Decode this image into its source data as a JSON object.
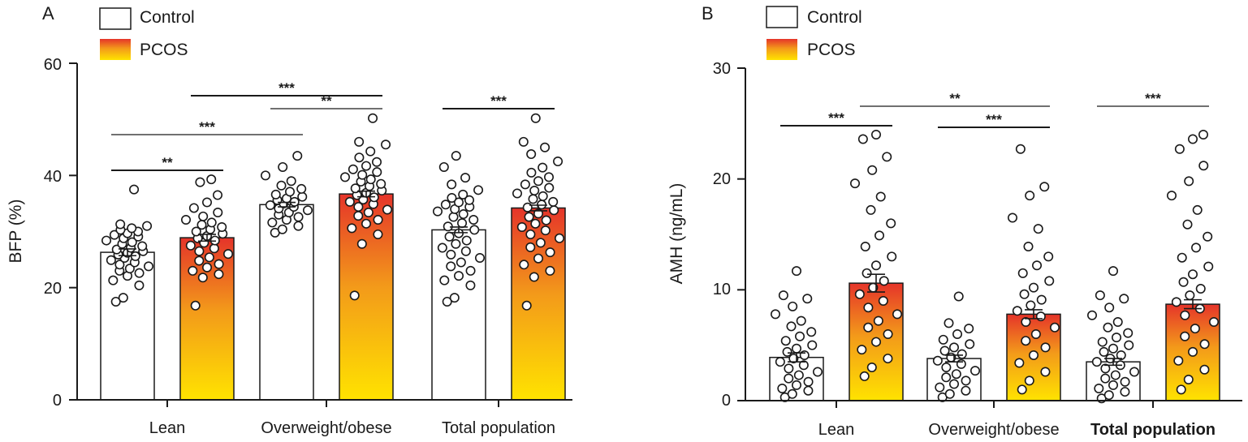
{
  "chart_data": [
    {
      "type": "bar",
      "panel_label": "A",
      "ylabel": "BFP (%)",
      "ylim": [
        0,
        60
      ],
      "yticks": [
        0,
        20,
        40,
        60
      ],
      "categories": [
        "Lean",
        "Overweight/obese",
        "Total population"
      ],
      "series": [
        {
          "name": "Control",
          "style": "white",
          "values": [
            26.3,
            34.8,
            30.3
          ],
          "sem": [
            0.6,
            0.4,
            0.5
          ],
          "points": [
            [
              17.5,
              18.2,
              20.4,
              21.3,
              22.1,
              22.6,
              23.0,
              23.4,
              23.8,
              24.1,
              24.5,
              24.9,
              25.3,
              25.6,
              25.9,
              26.2,
              26.5,
              26.8,
              27.1,
              27.4,
              27.8,
              28.1,
              28.4,
              28.8,
              29.1,
              29.4,
              29.7,
              30.0,
              30.3,
              30.6,
              31.0,
              31.3,
              37.5
            ],
            [
              29.8,
              30.4,
              31.0,
              31.6,
              32.1,
              32.6,
              33.0,
              33.4,
              33.8,
              34.1,
              34.4,
              34.7,
              35.0,
              35.3,
              35.6,
              35.9,
              36.2,
              36.6,
              37.1,
              37.6,
              38.2,
              39.0,
              40.0,
              41.5,
              43.5
            ],
            [
              17.5,
              18.2,
              20.4,
              21.3,
              22.1,
              23.0,
              23.8,
              24.5,
              25.3,
              25.9,
              26.5,
              27.1,
              27.8,
              28.4,
              29.1,
              29.7,
              30.3,
              30.9,
              31.5,
              32.1,
              32.6,
              33.1,
              33.6,
              34.0,
              34.4,
              34.8,
              35.2,
              35.6,
              36.0,
              36.6,
              37.4,
              38.4,
              39.6,
              41.5,
              43.5
            ]
          ]
        },
        {
          "name": "PCOS",
          "style": "gradient",
          "values": [
            28.9,
            36.7,
            34.2
          ],
          "sem": [
            0.6,
            0.5,
            0.5
          ],
          "points": [
            [
              16.8,
              21.8,
              22.4,
              23.0,
              23.6,
              24.2,
              24.8,
              25.4,
              26.0,
              26.5,
              27.0,
              27.5,
              28.0,
              28.4,
              28.8,
              29.2,
              29.6,
              30.0,
              30.4,
              30.8,
              31.2,
              31.6,
              32.1,
              32.7,
              33.4,
              34.2,
              35.2,
              36.5,
              38.8,
              39.3
            ],
            [
              18.6,
              27.8,
              29.5,
              30.6,
              31.4,
              32.1,
              32.8,
              33.4,
              33.9,
              34.4,
              34.9,
              35.3,
              35.7,
              36.1,
              36.5,
              36.9,
              37.3,
              37.7,
              38.1,
              38.5,
              38.9,
              39.3,
              39.7,
              40.1,
              40.6,
              41.1,
              41.7,
              42.4,
              43.2,
              44.3,
              45.5,
              46.0,
              50.2
            ],
            [
              16.8,
              21.9,
              23.0,
              24.1,
              25.2,
              26.3,
              27.2,
              28.0,
              28.8,
              29.5,
              30.2,
              30.8,
              31.4,
              32.0,
              32.6,
              33.2,
              33.8,
              34.3,
              34.8,
              35.3,
              35.8,
              36.3,
              36.8,
              37.3,
              37.8,
              38.4,
              39.0,
              39.7,
              40.5,
              41.4,
              42.5,
              43.8,
              45.0,
              46.0,
              50.2
            ]
          ]
        }
      ],
      "significance": [
        {
          "label": "**",
          "from": "Lean Control",
          "to": "Lean PCOS"
        },
        {
          "label": "***",
          "from": "Lean Control",
          "to": "Overweight/obese Control"
        },
        {
          "label": "***",
          "from": "Lean PCOS",
          "to": "Overweight/obese PCOS"
        },
        {
          "label": "**",
          "from": "Overweight/obese Control",
          "to": "Overweight/obese PCOS"
        },
        {
          "label": "***",
          "from": "Total population Control",
          "to": "Total population PCOS"
        }
      ],
      "legend": [
        "Control",
        "PCOS"
      ],
      "legend_position": "top-left"
    },
    {
      "type": "bar",
      "panel_label": "B",
      "ylabel": "AMH (ng/mL)",
      "ylim": [
        0,
        30
      ],
      "yticks": [
        0,
        10,
        20,
        30
      ],
      "categories": [
        "Lean",
        "Overweight/obese",
        "Total population"
      ],
      "series": [
        {
          "name": "Control",
          "style": "white",
          "values": [
            3.9,
            3.8,
            3.5
          ],
          "sem": [
            0.4,
            0.3,
            0.3
          ],
          "points": [
            [
              0.3,
              0.6,
              0.9,
              1.1,
              1.4,
              1.7,
              2.0,
              2.3,
              2.6,
              2.9,
              3.2,
              3.5,
              3.8,
              4.1,
              4.4,
              4.7,
              5.0,
              5.4,
              5.8,
              6.2,
              6.7,
              7.2,
              7.8,
              8.5,
              9.2,
              9.5,
              11.7
            ],
            [
              0.3,
              0.6,
              0.9,
              1.2,
              1.5,
              1.8,
              2.1,
              2.4,
              2.7,
              3.0,
              3.3,
              3.6,
              3.9,
              4.2,
              4.5,
              4.8,
              5.1,
              5.5,
              6.0,
              6.5,
              7.0,
              9.4
            ],
            [
              0.2,
              0.5,
              0.8,
              1.1,
              1.4,
              1.7,
              2.0,
              2.3,
              2.6,
              2.9,
              3.2,
              3.5,
              3.8,
              4.1,
              4.4,
              4.7,
              5.0,
              5.3,
              5.7,
              6.1,
              6.6,
              7.1,
              7.7,
              8.4,
              9.2,
              9.5,
              11.7
            ]
          ]
        },
        {
          "name": "PCOS",
          "style": "gradient",
          "values": [
            10.6,
            7.8,
            8.7
          ],
          "sem": [
            0.8,
            0.4,
            0.4
          ],
          "points": [
            [
              2.2,
              3.0,
              3.8,
              4.6,
              5.3,
              6.0,
              6.6,
              7.2,
              7.8,
              8.4,
              9.0,
              9.6,
              10.2,
              10.8,
              11.5,
              12.2,
              13.0,
              13.9,
              14.9,
              16.0,
              17.2,
              18.4,
              19.6,
              20.8,
              22.0,
              23.6,
              24.0
            ],
            [
              1.0,
              1.8,
              2.6,
              3.4,
              4.1,
              4.8,
              5.4,
              6.0,
              6.6,
              7.1,
              7.6,
              8.1,
              8.6,
              9.1,
              9.6,
              10.2,
              10.8,
              11.5,
              12.2,
              13.0,
              13.9,
              15.5,
              16.5,
              18.5,
              19.3,
              22.7
            ],
            [
              1.0,
              1.9,
              2.8,
              3.6,
              4.4,
              5.1,
              5.8,
              6.5,
              7.1,
              7.7,
              8.3,
              8.9,
              9.5,
              10.1,
              10.7,
              11.4,
              12.1,
              12.9,
              13.8,
              14.8,
              15.9,
              17.2,
              18.5,
              19.8,
              21.2,
              22.7,
              23.6,
              24.0
            ]
          ]
        }
      ],
      "significance": [
        {
          "label": "***",
          "from": "Lean Control",
          "to": "Lean PCOS"
        },
        {
          "label": "**",
          "from": "Lean PCOS",
          "to": "Overweight/obese PCOS"
        },
        {
          "label": "***",
          "from": "Overweight/obese Control",
          "to": "Overweight/obese PCOS"
        },
        {
          "label": "***",
          "from": "Total population Control",
          "to": "Total population PCOS"
        }
      ],
      "legend": [
        "Control",
        "PCOS"
      ],
      "legend_position": "top-left"
    }
  ],
  "colors": {
    "gradient_top": "#e5342a",
    "gradient_mid": "#f39a1a",
    "gradient_bottom": "#ffe300",
    "control_fill": "#ffffff",
    "outline": "#1a1a1a"
  }
}
